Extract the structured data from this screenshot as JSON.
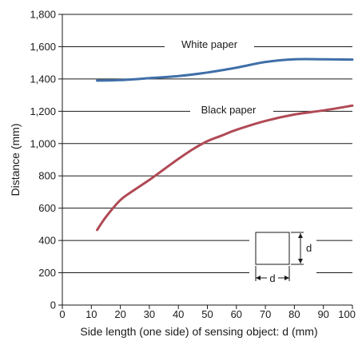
{
  "chart_data": {
    "type": "line",
    "title": "",
    "xlabel": "Side length (one side) of sensing object: d (mm)",
    "ylabel": "Distance (mm)",
    "xlim": [
      0,
      100
    ],
    "ylim": [
      0,
      1800
    ],
    "x_ticks": [
      0,
      10,
      20,
      30,
      40,
      50,
      60,
      70,
      80,
      90,
      100
    ],
    "x_tick_labels": [
      "0",
      "10",
      "20",
      "30",
      "40",
      "50",
      "60",
      "70",
      "80",
      "90",
      "100"
    ],
    "y_ticks": [
      0,
      200,
      400,
      600,
      800,
      1000,
      1200,
      1400,
      1600,
      1800
    ],
    "y_tick_labels": [
      "0",
      "200",
      "400",
      "600",
      "800",
      "1,000",
      "1,200",
      "1,400",
      "1,600",
      "1,800"
    ],
    "grid": "horizontal",
    "series": [
      {
        "name": "White paper",
        "color": "#3f6fa8",
        "x": [
          12,
          20,
          30,
          40,
          50,
          60,
          70,
          80,
          90,
          100
        ],
        "y": [
          1390,
          1393,
          1405,
          1418,
          1440,
          1470,
          1505,
          1522,
          1522,
          1520
        ]
      },
      {
        "name": "Black paper",
        "color": "#b04a55",
        "x": [
          12,
          15,
          20,
          25,
          30,
          35,
          40,
          45,
          50,
          55,
          60,
          70,
          80,
          90,
          100
        ],
        "y": [
          465,
          545,
          650,
          715,
          775,
          840,
          905,
          965,
          1015,
          1050,
          1085,
          1140,
          1180,
          1205,
          1235
        ]
      }
    ],
    "inset": {
      "label_side": "d",
      "label_bottom": "d"
    }
  }
}
